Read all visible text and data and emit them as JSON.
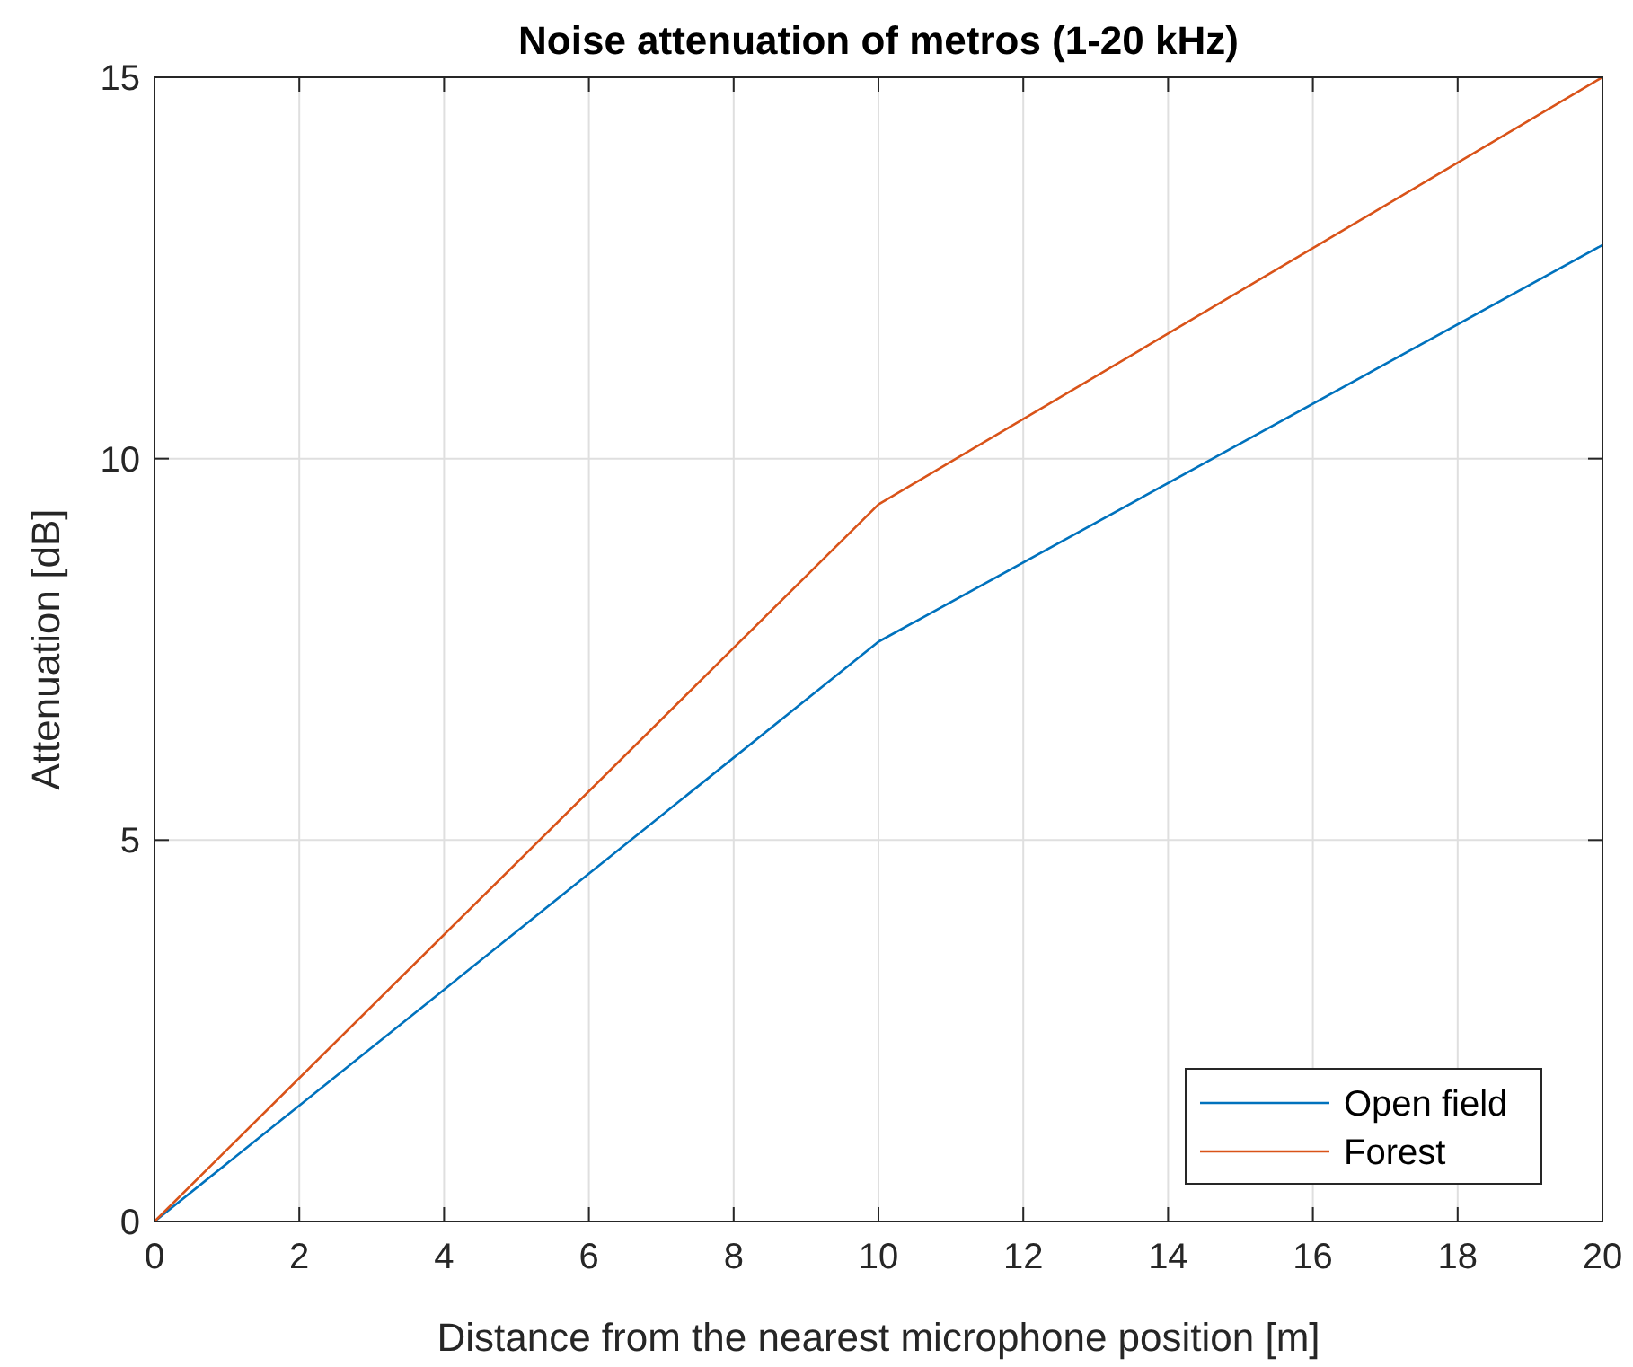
{
  "chart_data": {
    "type": "line",
    "title": "Noise attenuation of metros (1-20 kHz)",
    "xlabel": "Distance from the nearest microphone position [m]",
    "ylabel": "Attenuation [dB]",
    "x": [
      0,
      10,
      20
    ],
    "series": [
      {
        "name": "Open field",
        "color": "#0072bd",
        "values": [
          0,
          7.6,
          12.8
        ]
      },
      {
        "name": "Forest",
        "color": "#d95319",
        "values": [
          0,
          9.4,
          15
        ]
      }
    ],
    "xlim": [
      0,
      20
    ],
    "xticks": [
      0,
      2,
      4,
      6,
      8,
      10,
      12,
      14,
      16,
      18,
      20
    ],
    "ylim": [
      0,
      15
    ],
    "yticks": [
      0,
      5,
      10,
      15
    ],
    "grid": true,
    "legend": "bottom right",
    "marker": "none",
    "line_style": "solid"
  }
}
